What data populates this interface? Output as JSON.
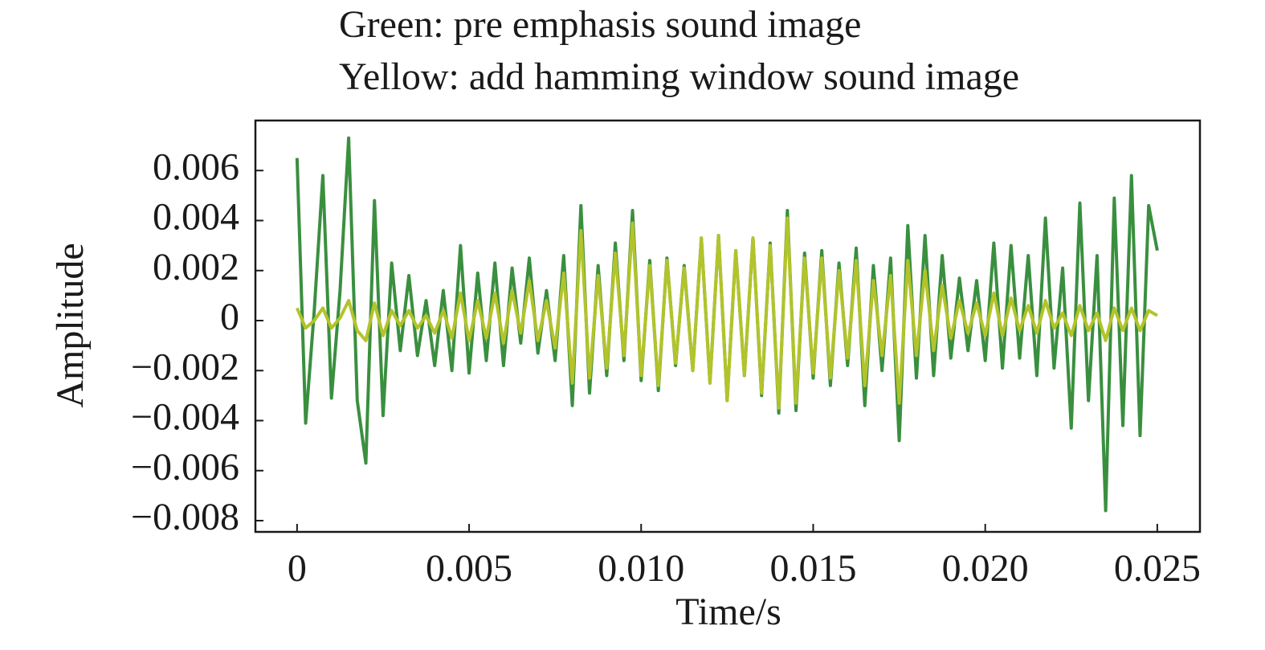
{
  "chart_data": {
    "type": "line",
    "annotations": [
      "Green: pre emphasis sound image",
      "Yellow: add hamming window sound image"
    ],
    "x_label": "Time/s",
    "y_label": "Amplitude",
    "x": [
      0,
      0.00025,
      0.0005,
      0.00075,
      0.001,
      0.00125,
      0.0015,
      0.00175,
      0.002,
      0.00225,
      0.0025,
      0.00275,
      0.003,
      0.00325,
      0.0035,
      0.00375,
      0.004,
      0.00425,
      0.0045,
      0.00475,
      0.005,
      0.00525,
      0.0055,
      0.00575,
      0.006,
      0.00625,
      0.0065,
      0.00675,
      0.007,
      0.00725,
      0.0075,
      0.00775,
      0.008,
      0.00825,
      0.0085,
      0.00875,
      0.009,
      0.00925,
      0.0095,
      0.00975,
      0.01,
      0.01025,
      0.0105,
      0.01075,
      0.011,
      0.01125,
      0.0115,
      0.01175,
      0.012,
      0.01225,
      0.0125,
      0.01275,
      0.013,
      0.01325,
      0.0135,
      0.01375,
      0.014,
      0.01425,
      0.0145,
      0.01475,
      0.015,
      0.01525,
      0.0155,
      0.01575,
      0.016,
      0.01625,
      0.0165,
      0.01675,
      0.017,
      0.01725,
      0.0175,
      0.01775,
      0.018,
      0.01825,
      0.0185,
      0.01875,
      0.019,
      0.01925,
      0.0195,
      0.01975,
      0.02,
      0.02025,
      0.0205,
      0.02075,
      0.021,
      0.02125,
      0.0215,
      0.02175,
      0.022,
      0.02225,
      0.0225,
      0.02275,
      0.023,
      0.02325,
      0.0235,
      0.02375,
      0.024,
      0.02425,
      0.0245,
      0.02475,
      0.025
    ],
    "series": [
      {
        "name": "Green",
        "color": "#3a8f3f",
        "values": [
          0.0065,
          -0.0041,
          0.0004,
          0.0058,
          -0.0031,
          0.0012,
          0.0073,
          -0.0032,
          -0.0057,
          0.0048,
          -0.0038,
          0.0023,
          -0.0012,
          0.0018,
          -0.0014,
          0.0008,
          -0.0018,
          0.0012,
          -0.002,
          0.003,
          -0.0021,
          0.0019,
          -0.0016,
          0.0023,
          -0.0018,
          0.0021,
          -0.0009,
          0.0025,
          -0.0013,
          0.0012,
          -0.0016,
          0.0026,
          -0.0034,
          0.0046,
          -0.0029,
          0.0022,
          -0.0022,
          0.0031,
          -0.0016,
          0.0044,
          -0.0024,
          0.0024,
          -0.0028,
          0.0025,
          -0.0018,
          0.0022,
          -0.002,
          0.0033,
          -0.0025,
          0.0034,
          -0.0032,
          0.0028,
          -0.0022,
          0.0033,
          -0.003,
          0.0031,
          -0.0037,
          0.0044,
          -0.0036,
          0.0027,
          -0.0023,
          0.0028,
          -0.0026,
          0.0023,
          -0.0018,
          0.0029,
          -0.0034,
          0.0022,
          -0.002,
          0.0025,
          -0.0048,
          0.0038,
          -0.0023,
          0.0034,
          -0.0022,
          0.0026,
          -0.0015,
          0.0017,
          -0.0012,
          0.0016,
          -0.0016,
          0.0031,
          -0.0019,
          0.003,
          -0.0015,
          0.0026,
          -0.0022,
          0.0041,
          -0.0019,
          0.0021,
          -0.0043,
          0.0047,
          -0.0032,
          0.0026,
          -0.0076,
          0.0049,
          -0.0042,
          0.0058,
          -0.0046,
          0.0046,
          0.0028
        ]
      },
      {
        "name": "Yellow",
        "color": "#b3c32b",
        "values": [
          0.0005,
          -0.0003,
          0,
          0.0005,
          -0.0003,
          0.0001,
          0.0008,
          -0.0004,
          -0.0008,
          0.0007,
          -0.0006,
          0.0004,
          -0.0002,
          0.0004,
          -0.0003,
          0.0002,
          -0.0005,
          0.0004,
          -0.0007,
          0.0011,
          -0.0008,
          0.0008,
          -0.0007,
          0.0011,
          -0.0009,
          0.0012,
          -0.0005,
          0.0016,
          -0.0008,
          0.0008,
          -0.0011,
          0.0019,
          -0.0025,
          0.0036,
          -0.0023,
          0.0018,
          -0.0019,
          0.0027,
          -0.0014,
          0.0039,
          -0.0022,
          0.0022,
          -0.0026,
          0.0024,
          -0.0017,
          0.0021,
          -0.002,
          0.0033,
          -0.0025,
          0.0034,
          -0.0032,
          0.0028,
          -0.0022,
          0.0033,
          -0.0029,
          0.003,
          -0.0035,
          0.0041,
          -0.0033,
          0.0025,
          -0.0021,
          0.0025,
          -0.0023,
          0.002,
          -0.0015,
          0.0024,
          -0.0026,
          0.0016,
          -0.0014,
          0.0018,
          -0.0033,
          0.0024,
          -0.0014,
          0.002,
          -0.0012,
          0.0014,
          -0.0007,
          0.0008,
          -0.0005,
          0.0007,
          -0.0006,
          0.0011,
          -0.0006,
          0.0009,
          -0.0004,
          0.0006,
          -0.0005,
          0.0008,
          -0.0003,
          0.0003,
          -0.0006,
          0.0006,
          -0.0004,
          0.0003,
          -0.0008,
          0.0005,
          -0.0004,
          0.0005,
          -0.0004,
          0.0004,
          0.0002
        ]
      }
    ],
    "xlim": [
      -0.00121,
      0.02624
    ],
    "ylim": [
      -0.00845,
      0.008
    ],
    "xticks": [
      0,
      0.005,
      {
        "value": 0.01,
        "label": "0.010"
      },
      0.015,
      {
        "value": 0.02,
        "label": "0.020"
      },
      0.025
    ],
    "yticks": [
      {
        "value": -0.008,
        "label": "−0.008"
      },
      {
        "value": -0.006,
        "label": "−0.006"
      },
      {
        "value": -0.004,
        "label": "−0.004"
      },
      {
        "value": -0.002,
        "label": "−0.002"
      },
      0,
      0.002,
      0.004,
      0.006
    ],
    "grid": false
  }
}
